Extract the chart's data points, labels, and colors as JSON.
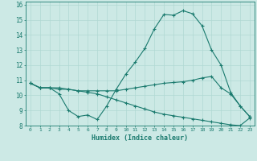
{
  "xlabel": "Humidex (Indice chaleur)",
  "xlim": [
    -0.5,
    23.5
  ],
  "ylim": [
    8,
    16.2
  ],
  "yticks": [
    8,
    9,
    10,
    11,
    12,
    13,
    14,
    15,
    16
  ],
  "xticks": [
    0,
    1,
    2,
    3,
    4,
    5,
    6,
    7,
    8,
    9,
    10,
    11,
    12,
    13,
    14,
    15,
    16,
    17,
    18,
    19,
    20,
    21,
    22,
    23
  ],
  "bg_color": "#cce9e5",
  "grid_color": "#b0d8d3",
  "line_color": "#1a7a6e",
  "line1_y": [
    10.8,
    10.5,
    10.5,
    10.1,
    9.0,
    8.6,
    8.7,
    8.4,
    9.3,
    10.4,
    11.4,
    12.2,
    13.1,
    14.4,
    15.35,
    15.3,
    15.6,
    15.4,
    14.6,
    13.0,
    12.0,
    10.2,
    9.3,
    8.6
  ],
  "line2_y": [
    10.8,
    10.5,
    10.5,
    10.4,
    10.4,
    10.3,
    10.3,
    10.3,
    10.3,
    10.3,
    10.4,
    10.5,
    10.6,
    10.7,
    10.8,
    10.85,
    10.9,
    11.0,
    11.15,
    11.25,
    10.5,
    10.1,
    9.3,
    8.6
  ],
  "line3_y": [
    10.8,
    10.5,
    10.5,
    10.5,
    10.4,
    10.3,
    10.2,
    10.1,
    9.9,
    9.7,
    9.5,
    9.3,
    9.1,
    8.9,
    8.75,
    8.65,
    8.55,
    8.45,
    8.35,
    8.25,
    8.15,
    8.05,
    8.0,
    8.5
  ]
}
